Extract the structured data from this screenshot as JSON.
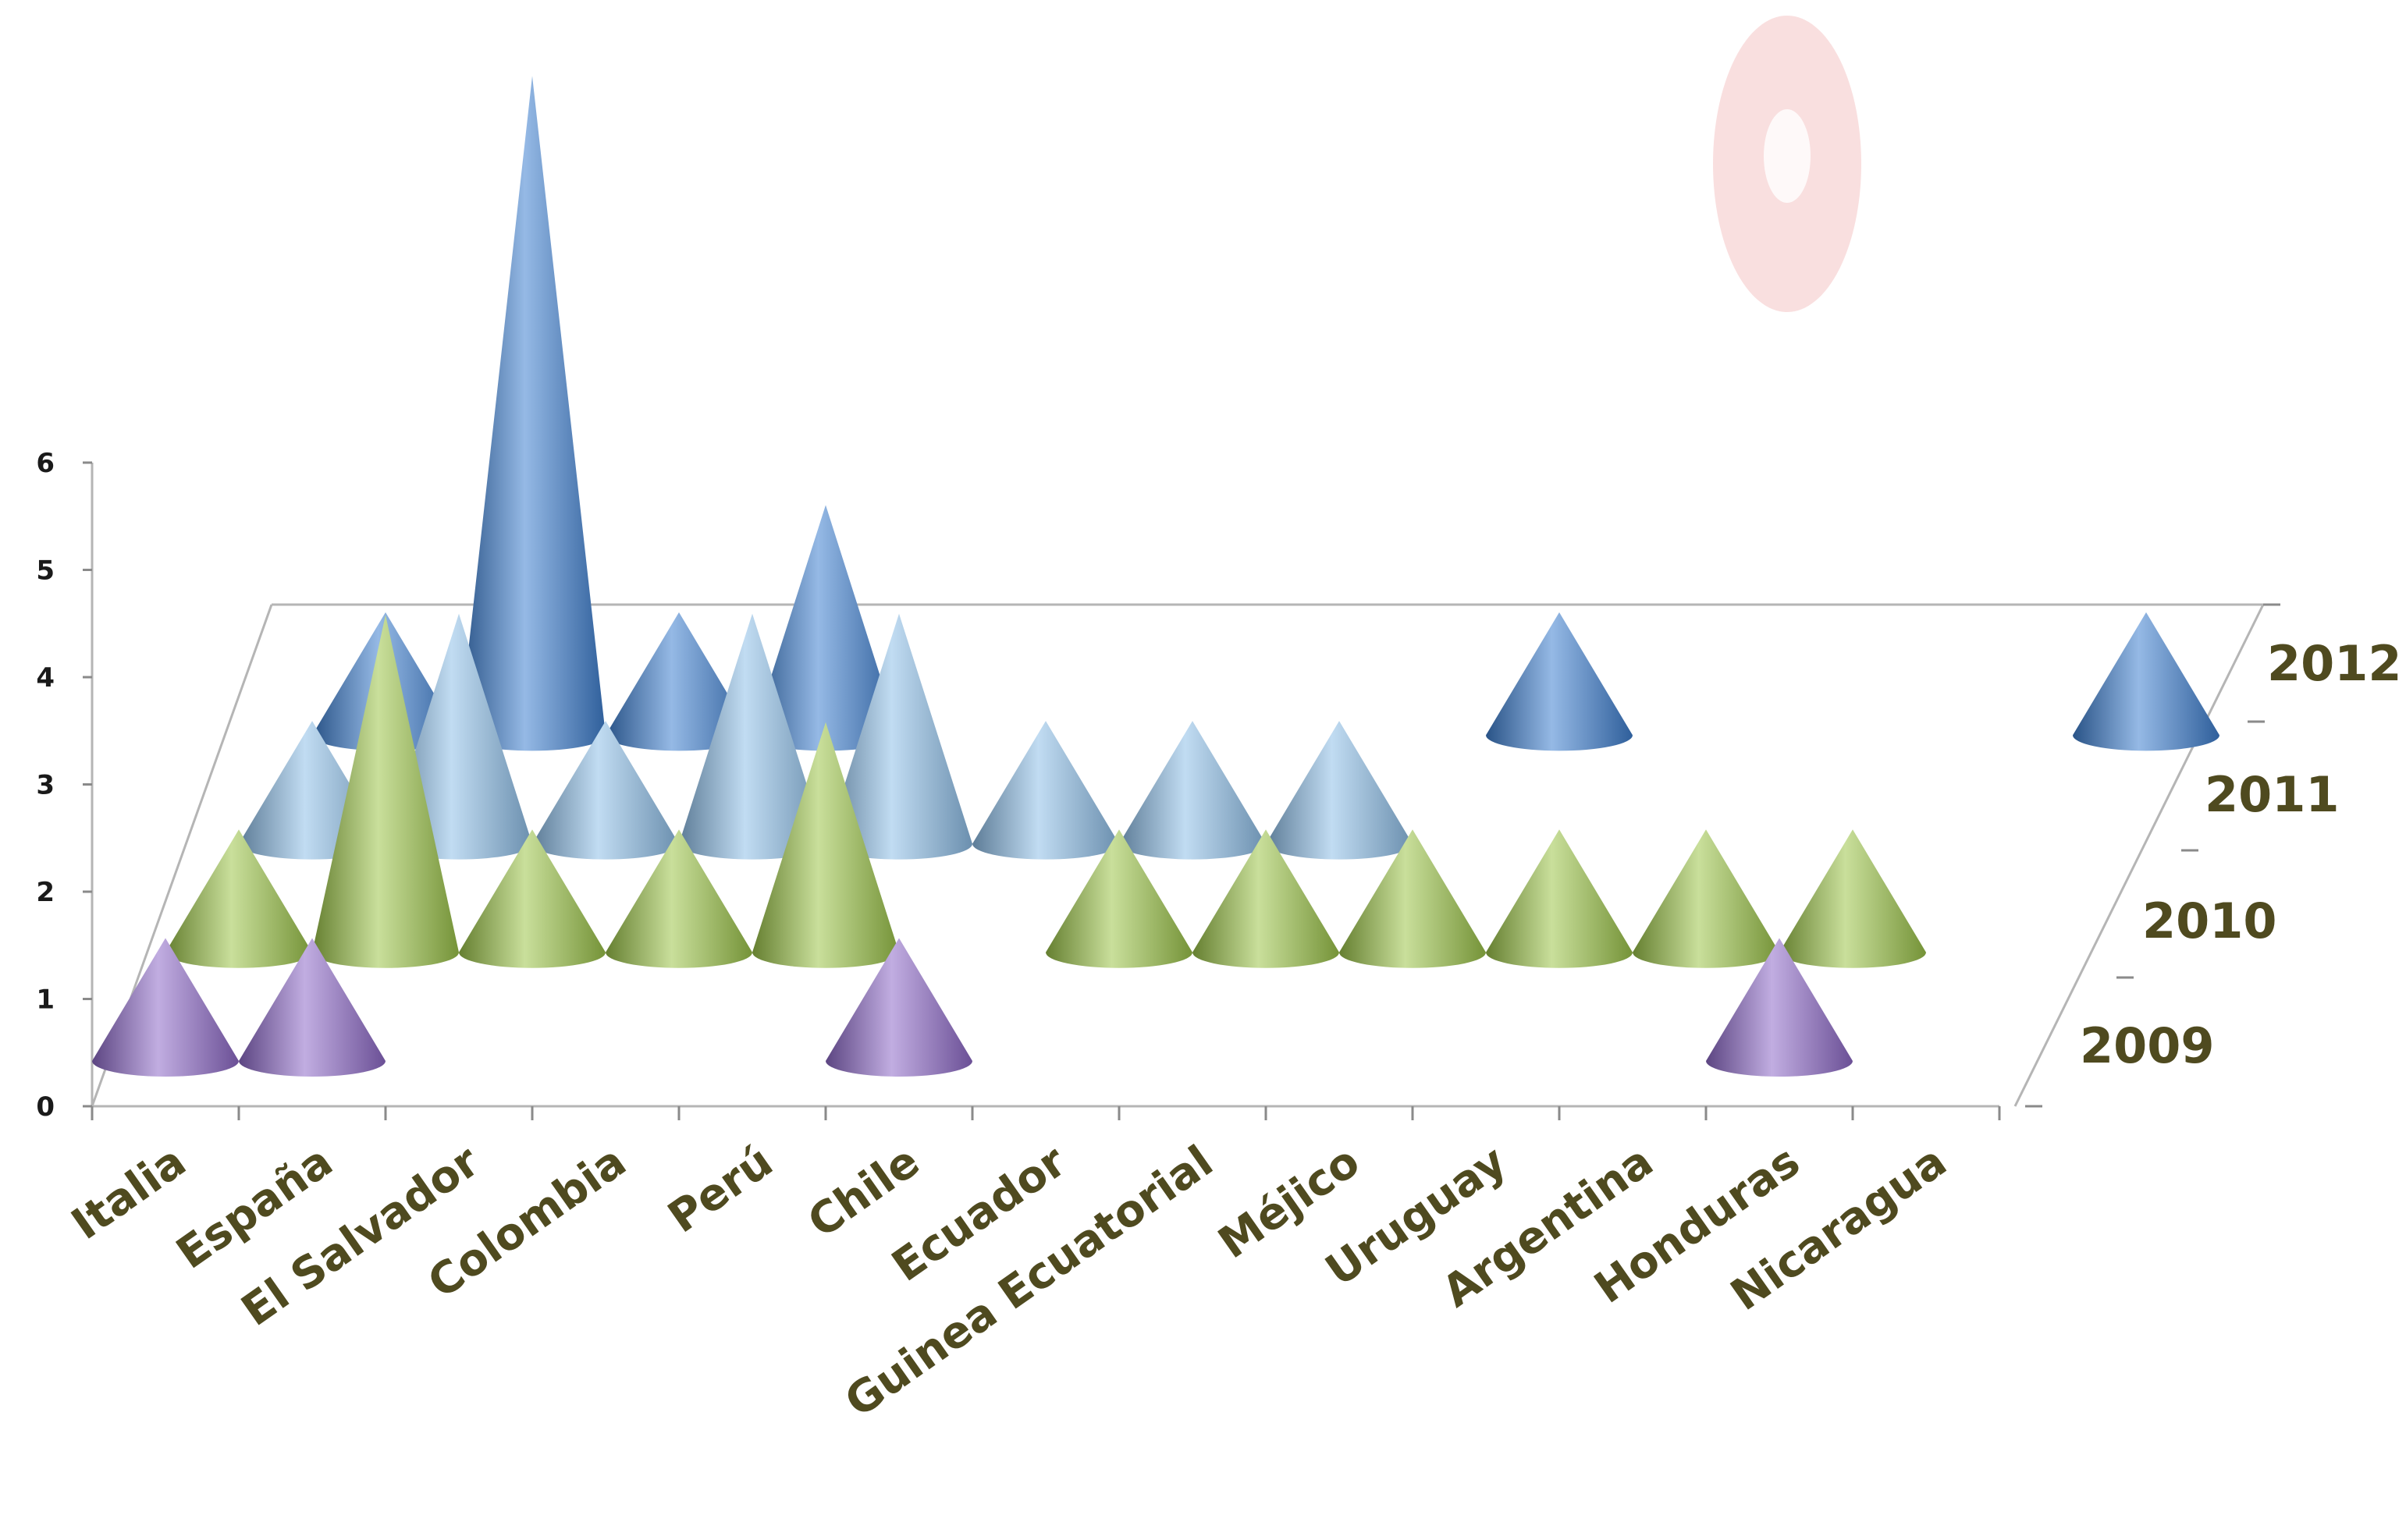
{
  "chart_data": {
    "type": "bar",
    "shape": "3d-cone",
    "categories": [
      "Italia",
      "España",
      "El Salvador",
      "Colombia",
      "Perú",
      "Chile",
      "Ecuador",
      "Guinea Ecuatorial",
      "Méjico",
      "Uruguay",
      "Argentina",
      "Honduras",
      "Nicaragua"
    ],
    "series": [
      {
        "name": "2009",
        "color": "#8e6ac8",
        "values": [
          1,
          1,
          0,
          0,
          0,
          1,
          0,
          0,
          0,
          0,
          0,
          1,
          0
        ]
      },
      {
        "name": "2010",
        "color": "#9cc44a",
        "values": [
          1,
          3,
          1,
          1,
          2,
          0,
          1,
          1,
          1,
          1,
          1,
          1,
          0
        ]
      },
      {
        "name": "2011",
        "color": "#8fbfe8",
        "values": [
          1,
          2,
          1,
          2,
          2,
          1,
          1,
          1,
          0,
          0,
          0,
          0,
          0
        ]
      },
      {
        "name": "2012",
        "color": "#3f7fcf",
        "values": [
          1,
          6,
          1,
          2,
          0,
          0,
          0,
          0,
          1,
          0,
          0,
          0,
          1
        ]
      }
    ],
    "y_ticks": [
      "0",
      "1",
      "2",
      "3",
      "4",
      "5",
      "6"
    ],
    "ylim": [
      0,
      6
    ],
    "title": "",
    "xlabel": "",
    "ylabel": "",
    "grid": false,
    "legend": "depth-axis-right"
  }
}
